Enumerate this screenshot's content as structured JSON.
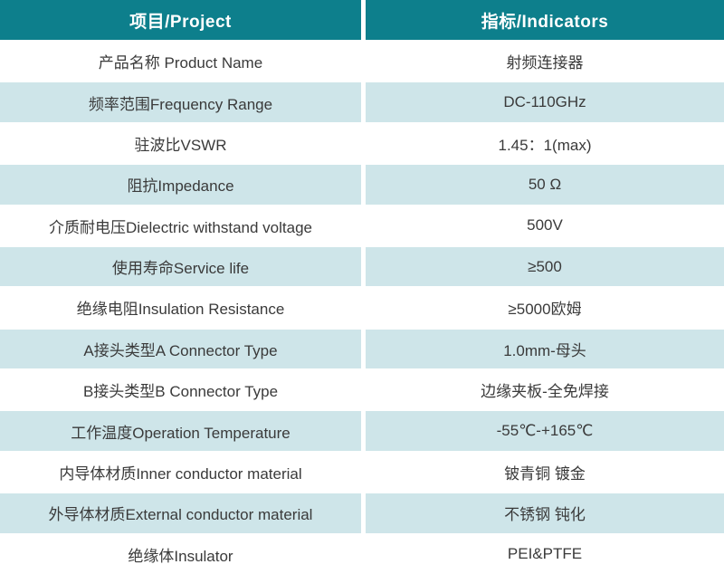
{
  "colors": {
    "header_bg": "#0d7f8c",
    "header_text": "#ffffff",
    "row_alt_bg": "#cee5e9",
    "row_bg": "#ffffff",
    "text": "#3a3a3a"
  },
  "table": {
    "columns": [
      {
        "label": "项目/Project"
      },
      {
        "label": "指标/Indicators"
      }
    ],
    "rows": [
      {
        "project": "产品名称 Product Name",
        "indicator": "射频连接器"
      },
      {
        "project": "频率范围Frequency Range",
        "indicator": "DC-110GHz"
      },
      {
        "project": "驻波比VSWR",
        "indicator": "1.45：1(max)"
      },
      {
        "project": "阻抗Impedance",
        "indicator": "50 Ω"
      },
      {
        "project": "介质耐电压Dielectric withstand voltage",
        "indicator": "500V"
      },
      {
        "project": "使用寿命Service life",
        "indicator": "≥500"
      },
      {
        "project": "绝缘电阻Insulation Resistance",
        "indicator": "≥5000欧姆"
      },
      {
        "project": "A接头类型A Connector Type",
        "indicator": "1.0mm-母头"
      },
      {
        "project": "B接头类型B Connector Type",
        "indicator": "边缘夹板-全免焊接"
      },
      {
        "project": "工作温度Operation Temperature",
        "indicator": "-55℃-+165℃"
      },
      {
        "project": "内导体材质Inner conductor material",
        "indicator": "铍青铜 镀金"
      },
      {
        "project": "外导体材质External conductor material",
        "indicator": "不锈钢 钝化"
      },
      {
        "project": "绝缘体Insulator",
        "indicator": "PEI&PTFE"
      }
    ]
  }
}
